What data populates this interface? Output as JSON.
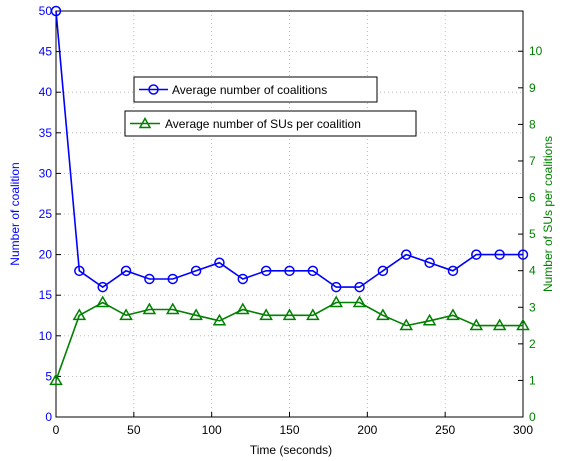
{
  "chart_data": {
    "type": "line",
    "x": [
      0,
      15,
      30,
      45,
      60,
      75,
      90,
      105,
      120,
      135,
      150,
      165,
      180,
      195,
      210,
      225,
      240,
      255,
      270,
      285,
      300
    ],
    "xlabel": "Time (seconds)",
    "xlim": [
      0,
      300
    ],
    "xticks": [
      "0",
      "50",
      "100",
      "150",
      "200",
      "250",
      "300"
    ],
    "ylabel_left": "Number of coalition",
    "ylim_left": [
      0,
      50
    ],
    "yticks_left": [
      "0",
      "5",
      "10",
      "15",
      "20",
      "25",
      "30",
      "35",
      "40",
      "45",
      "50"
    ],
    "ylabel_right": "Number of SUs per coalitions",
    "ylim_right": [
      0,
      11.1
    ],
    "yticks_right": [
      "0",
      "1",
      "2",
      "3",
      "4",
      "5",
      "6",
      "7",
      "8",
      "9",
      "10"
    ],
    "grid": true,
    "series": [
      {
        "name": "Average number of coalitions",
        "axis": "left",
        "color": "#0000ff",
        "marker": "circle",
        "values": [
          50,
          18,
          16,
          18,
          17,
          17,
          18,
          19,
          17,
          18,
          18,
          18,
          16,
          16,
          18,
          20,
          19,
          18,
          20,
          20,
          20
        ]
      },
      {
        "name": "Average number of SUs per coalition",
        "axis": "right",
        "color": "#008000",
        "marker": "triangle",
        "values": [
          1,
          2.78,
          3.13,
          2.78,
          2.94,
          2.94,
          2.78,
          2.63,
          2.94,
          2.78,
          2.78,
          2.78,
          3.13,
          3.13,
          2.78,
          2.5,
          2.63,
          2.78,
          2.5,
          2.5,
          2.5
        ]
      }
    ],
    "legend": "upper-middle",
    "colors": {
      "left_axis": "#0000ff",
      "right_axis": "#008000"
    }
  }
}
